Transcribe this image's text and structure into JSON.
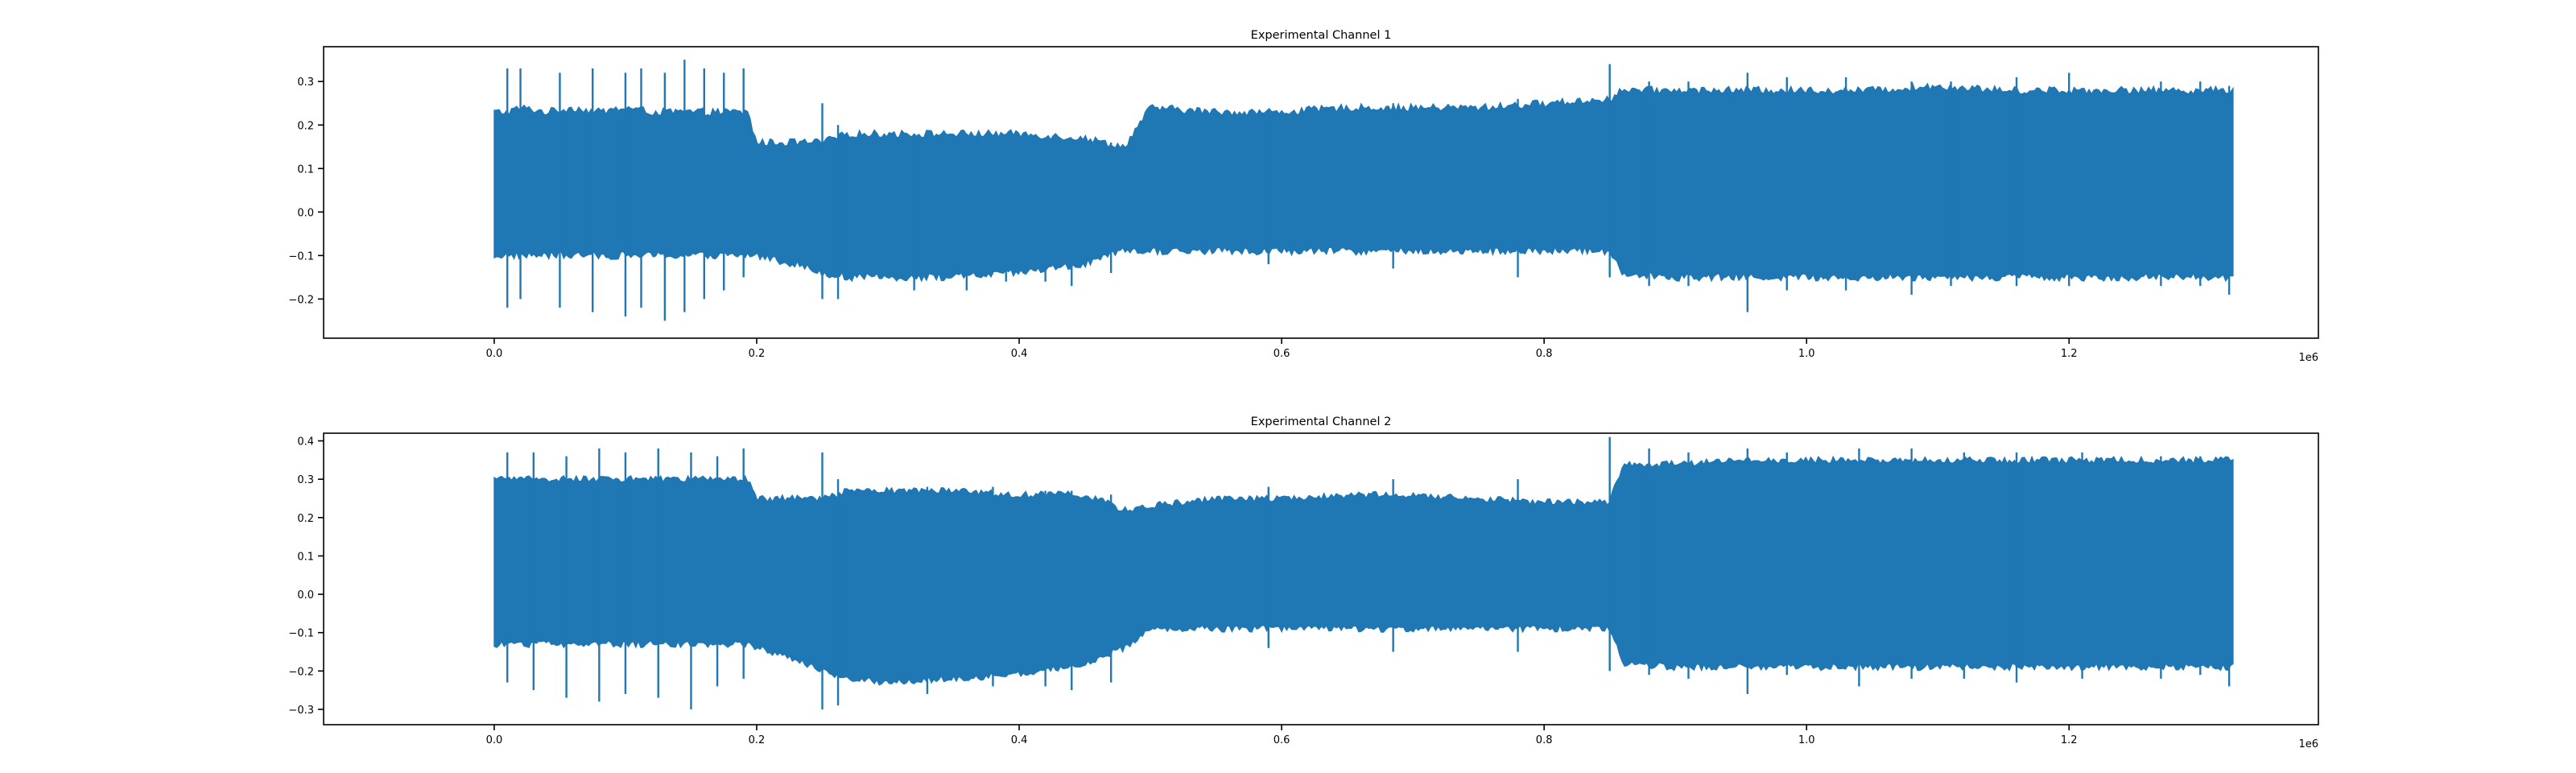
{
  "chart_data": [
    {
      "type": "line",
      "title": "Experimental Channel 1",
      "color": "#1f77b4",
      "xlim": [
        -130000,
        1390000
      ],
      "ylim": [
        -0.29,
        0.38
      ],
      "x_offset_label": "1e6",
      "xticks": [
        0,
        200000,
        400000,
        600000,
        800000,
        1000000,
        1200000
      ],
      "xtick_labels": [
        "0.0",
        "0.2",
        "0.4",
        "0.6",
        "0.8",
        "1.0",
        "1.2"
      ],
      "yticks": [
        -0.2,
        -0.1,
        0.0,
        0.1,
        0.2,
        0.3
      ],
      "ytick_labels": [
        "−0.2",
        "−0.1",
        "0.0",
        "0.1",
        "0.2",
        "0.3"
      ],
      "series": [
        {
          "x": [
            0,
            10000,
            20000,
            40000,
            60000,
            80000,
            100000,
            120000,
            140000,
            160000,
            180000,
            193000,
            200000,
            230000,
            250000,
            270000,
            300000,
            350000,
            400000,
            450000,
            480000,
            500000,
            550000,
            600000,
            650000,
            700000,
            750000,
            800000,
            850000,
            860000,
            900000,
            950000,
            1000000,
            1050000,
            1100000,
            1150000,
            1200000,
            1250000,
            1300000,
            1325000
          ],
          "upper": [
            0.23,
            0.23,
            0.24,
            0.23,
            0.24,
            0.23,
            0.24,
            0.23,
            0.23,
            0.23,
            0.23,
            0.23,
            0.16,
            0.16,
            0.16,
            0.18,
            0.18,
            0.18,
            0.18,
            0.17,
            0.15,
            0.24,
            0.23,
            0.23,
            0.24,
            0.24,
            0.24,
            0.25,
            0.26,
            0.28,
            0.28,
            0.28,
            0.28,
            0.28,
            0.29,
            0.28,
            0.28,
            0.28,
            0.28,
            0.28
          ],
          "lower": [
            -0.1,
            -0.1,
            -0.1,
            -0.1,
            -0.1,
            -0.1,
            -0.1,
            -0.1,
            -0.1,
            -0.1,
            -0.1,
            -0.1,
            -0.1,
            -0.12,
            -0.14,
            -0.15,
            -0.15,
            -0.15,
            -0.14,
            -0.12,
            -0.09,
            -0.09,
            -0.09,
            -0.09,
            -0.09,
            -0.09,
            -0.09,
            -0.09,
            -0.09,
            -0.14,
            -0.15,
            -0.15,
            -0.15,
            -0.15,
            -0.15,
            -0.15,
            -0.15,
            -0.15,
            -0.15,
            -0.15
          ],
          "spikes": [
            [
              10000,
              0.33,
              -0.22
            ],
            [
              20000,
              0.33,
              -0.2
            ],
            [
              50000,
              0.32,
              -0.22
            ],
            [
              75000,
              0.33,
              -0.23
            ],
            [
              100000,
              0.32,
              -0.24
            ],
            [
              112000,
              0.33,
              -0.22
            ],
            [
              130000,
              0.32,
              -0.25
            ],
            [
              145000,
              0.35,
              -0.23
            ],
            [
              160000,
              0.33,
              -0.2
            ],
            [
              175000,
              0.32,
              -0.18
            ],
            [
              190000,
              0.33,
              -0.15
            ],
            [
              250000,
              0.25,
              -0.2
            ],
            [
              262000,
              0.2,
              -0.2
            ],
            [
              320000,
              0.18,
              -0.18
            ],
            [
              360000,
              0.18,
              -0.18
            ],
            [
              390000,
              0.18,
              -0.16
            ],
            [
              420000,
              0.17,
              -0.16
            ],
            [
              440000,
              0.16,
              -0.17
            ],
            [
              470000,
              0.16,
              -0.14
            ],
            [
              590000,
              0.23,
              -0.12
            ],
            [
              685000,
              0.25,
              -0.13
            ],
            [
              780000,
              0.26,
              -0.15
            ],
            [
              850000,
              0.34,
              -0.15
            ],
            [
              880000,
              0.3,
              -0.17
            ],
            [
              910000,
              0.3,
              -0.17
            ],
            [
              955000,
              0.32,
              -0.23
            ],
            [
              985000,
              0.31,
              -0.18
            ],
            [
              1030000,
              0.31,
              -0.18
            ],
            [
              1080000,
              0.3,
              -0.19
            ],
            [
              1110000,
              0.3,
              -0.17
            ],
            [
              1160000,
              0.31,
              -0.17
            ],
            [
              1200000,
              0.32,
              -0.17
            ],
            [
              1270000,
              0.3,
              -0.17
            ],
            [
              1300000,
              0.3,
              -0.17
            ],
            [
              1322000,
              0.29,
              -0.19
            ]
          ]
        }
      ]
    },
    {
      "type": "line",
      "title": "Experimental Channel 2",
      "color": "#1f77b4",
      "xlim": [
        -130000,
        1390000
      ],
      "ylim": [
        -0.34,
        0.42
      ],
      "x_offset_label": "1e6",
      "xticks": [
        0,
        200000,
        400000,
        600000,
        800000,
        1000000,
        1200000
      ],
      "xtick_labels": [
        "0.0",
        "0.2",
        "0.4",
        "0.6",
        "0.8",
        "1.0",
        "1.2"
      ],
      "yticks": [
        -0.3,
        -0.2,
        -0.1,
        0.0,
        0.1,
        0.2,
        0.3,
        0.4
      ],
      "ytick_labels": [
        "−0.3",
        "−0.2",
        "−0.1",
        "0.0",
        "0.1",
        "0.2",
        "0.3",
        "0.4"
      ],
      "series": [
        {
          "x": [
            0,
            10000,
            20000,
            40000,
            60000,
            80000,
            100000,
            120000,
            140000,
            160000,
            180000,
            193000,
            200000,
            230000,
            250000,
            270000,
            300000,
            350000,
            400000,
            450000,
            480000,
            500000,
            550000,
            600000,
            650000,
            700000,
            750000,
            800000,
            850000,
            860000,
            900000,
            950000,
            1000000,
            1050000,
            1100000,
            1150000,
            1200000,
            1250000,
            1300000,
            1325000
          ],
          "upper": [
            0.3,
            0.3,
            0.3,
            0.3,
            0.3,
            0.3,
            0.3,
            0.3,
            0.3,
            0.3,
            0.3,
            0.3,
            0.25,
            0.25,
            0.25,
            0.27,
            0.27,
            0.27,
            0.26,
            0.26,
            0.22,
            0.23,
            0.25,
            0.25,
            0.26,
            0.26,
            0.25,
            0.24,
            0.24,
            0.34,
            0.34,
            0.35,
            0.35,
            0.35,
            0.35,
            0.35,
            0.35,
            0.35,
            0.35,
            0.35
          ],
          "lower": [
            -0.13,
            -0.13,
            -0.13,
            -0.13,
            -0.13,
            -0.13,
            -0.13,
            -0.13,
            -0.13,
            -0.13,
            -0.13,
            -0.13,
            -0.14,
            -0.17,
            -0.2,
            -0.22,
            -0.23,
            -0.22,
            -0.21,
            -0.18,
            -0.14,
            -0.09,
            -0.09,
            -0.09,
            -0.09,
            -0.09,
            -0.09,
            -0.09,
            -0.09,
            -0.18,
            -0.19,
            -0.19,
            -0.19,
            -0.19,
            -0.19,
            -0.19,
            -0.19,
            -0.19,
            -0.19,
            -0.19
          ],
          "spikes": [
            [
              10000,
              0.37,
              -0.23
            ],
            [
              30000,
              0.37,
              -0.25
            ],
            [
              55000,
              0.36,
              -0.27
            ],
            [
              80000,
              0.38,
              -0.28
            ],
            [
              100000,
              0.37,
              -0.26
            ],
            [
              125000,
              0.38,
              -0.27
            ],
            [
              150000,
              0.37,
              -0.3
            ],
            [
              170000,
              0.36,
              -0.24
            ],
            [
              190000,
              0.38,
              -0.22
            ],
            [
              250000,
              0.37,
              -0.3
            ],
            [
              262000,
              0.3,
              -0.29
            ],
            [
              330000,
              0.28,
              -0.26
            ],
            [
              380000,
              0.28,
              -0.24
            ],
            [
              420000,
              0.27,
              -0.24
            ],
            [
              440000,
              0.27,
              -0.25
            ],
            [
              470000,
              0.26,
              -0.23
            ],
            [
              590000,
              0.28,
              -0.14
            ],
            [
              685000,
              0.3,
              -0.15
            ],
            [
              780000,
              0.3,
              -0.15
            ],
            [
              850000,
              0.41,
              -0.2
            ],
            [
              880000,
              0.38,
              -0.21
            ],
            [
              910000,
              0.37,
              -0.22
            ],
            [
              955000,
              0.38,
              -0.26
            ],
            [
              985000,
              0.37,
              -0.21
            ],
            [
              1040000,
              0.38,
              -0.24
            ],
            [
              1080000,
              0.38,
              -0.22
            ],
            [
              1120000,
              0.37,
              -0.22
            ],
            [
              1160000,
              0.37,
              -0.23
            ],
            [
              1210000,
              0.37,
              -0.22
            ],
            [
              1270000,
              0.36,
              -0.22
            ],
            [
              1300000,
              0.36,
              -0.21
            ],
            [
              1322000,
              0.35,
              -0.24
            ]
          ]
        }
      ]
    }
  ]
}
